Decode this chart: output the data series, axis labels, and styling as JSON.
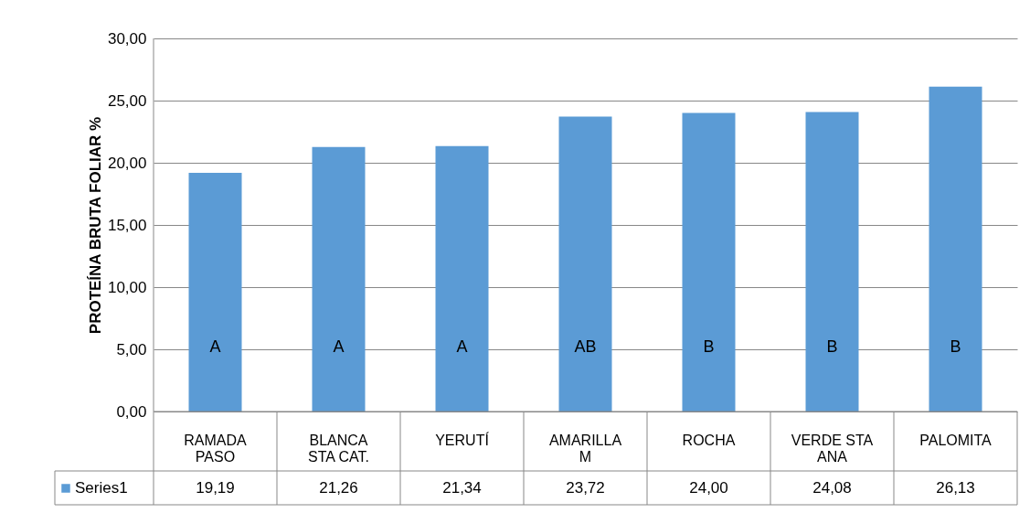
{
  "chart_data": {
    "type": "bar",
    "ylabel": "PROTEÍNA BRUTA FOLIAR %",
    "categories": [
      "RAMADA PASO",
      "BLANCA STA CAT.",
      "YERUTÍ",
      "AMARILLA M",
      "ROCHA",
      "VERDE STA ANA",
      "PALOMITA"
    ],
    "series": [
      {
        "name": "Series1",
        "color": "#5b9bd5",
        "values": [
          19.19,
          21.26,
          21.34,
          23.72,
          24.0,
          24.08,
          26.13
        ],
        "value_labels": [
          "19,19",
          "21,26",
          "21,34",
          "23,72",
          "24,00",
          "24,08",
          "26,13"
        ]
      }
    ],
    "ylim": [
      0,
      30
    ],
    "yticks": [
      {
        "value": 0,
        "label": "0,00"
      },
      {
        "value": 5,
        "label": "5,00"
      },
      {
        "value": 10,
        "label": "10,00"
      },
      {
        "value": 15,
        "label": "15,00"
      },
      {
        "value": 20,
        "label": "20,00"
      },
      {
        "value": 25,
        "label": "25,00"
      },
      {
        "value": 30,
        "label": "30,00"
      }
    ],
    "annotations": [
      "A",
      "A",
      "A",
      "AB",
      "B",
      "B",
      "B"
    ],
    "grid": "y",
    "legend": "bottom"
  }
}
